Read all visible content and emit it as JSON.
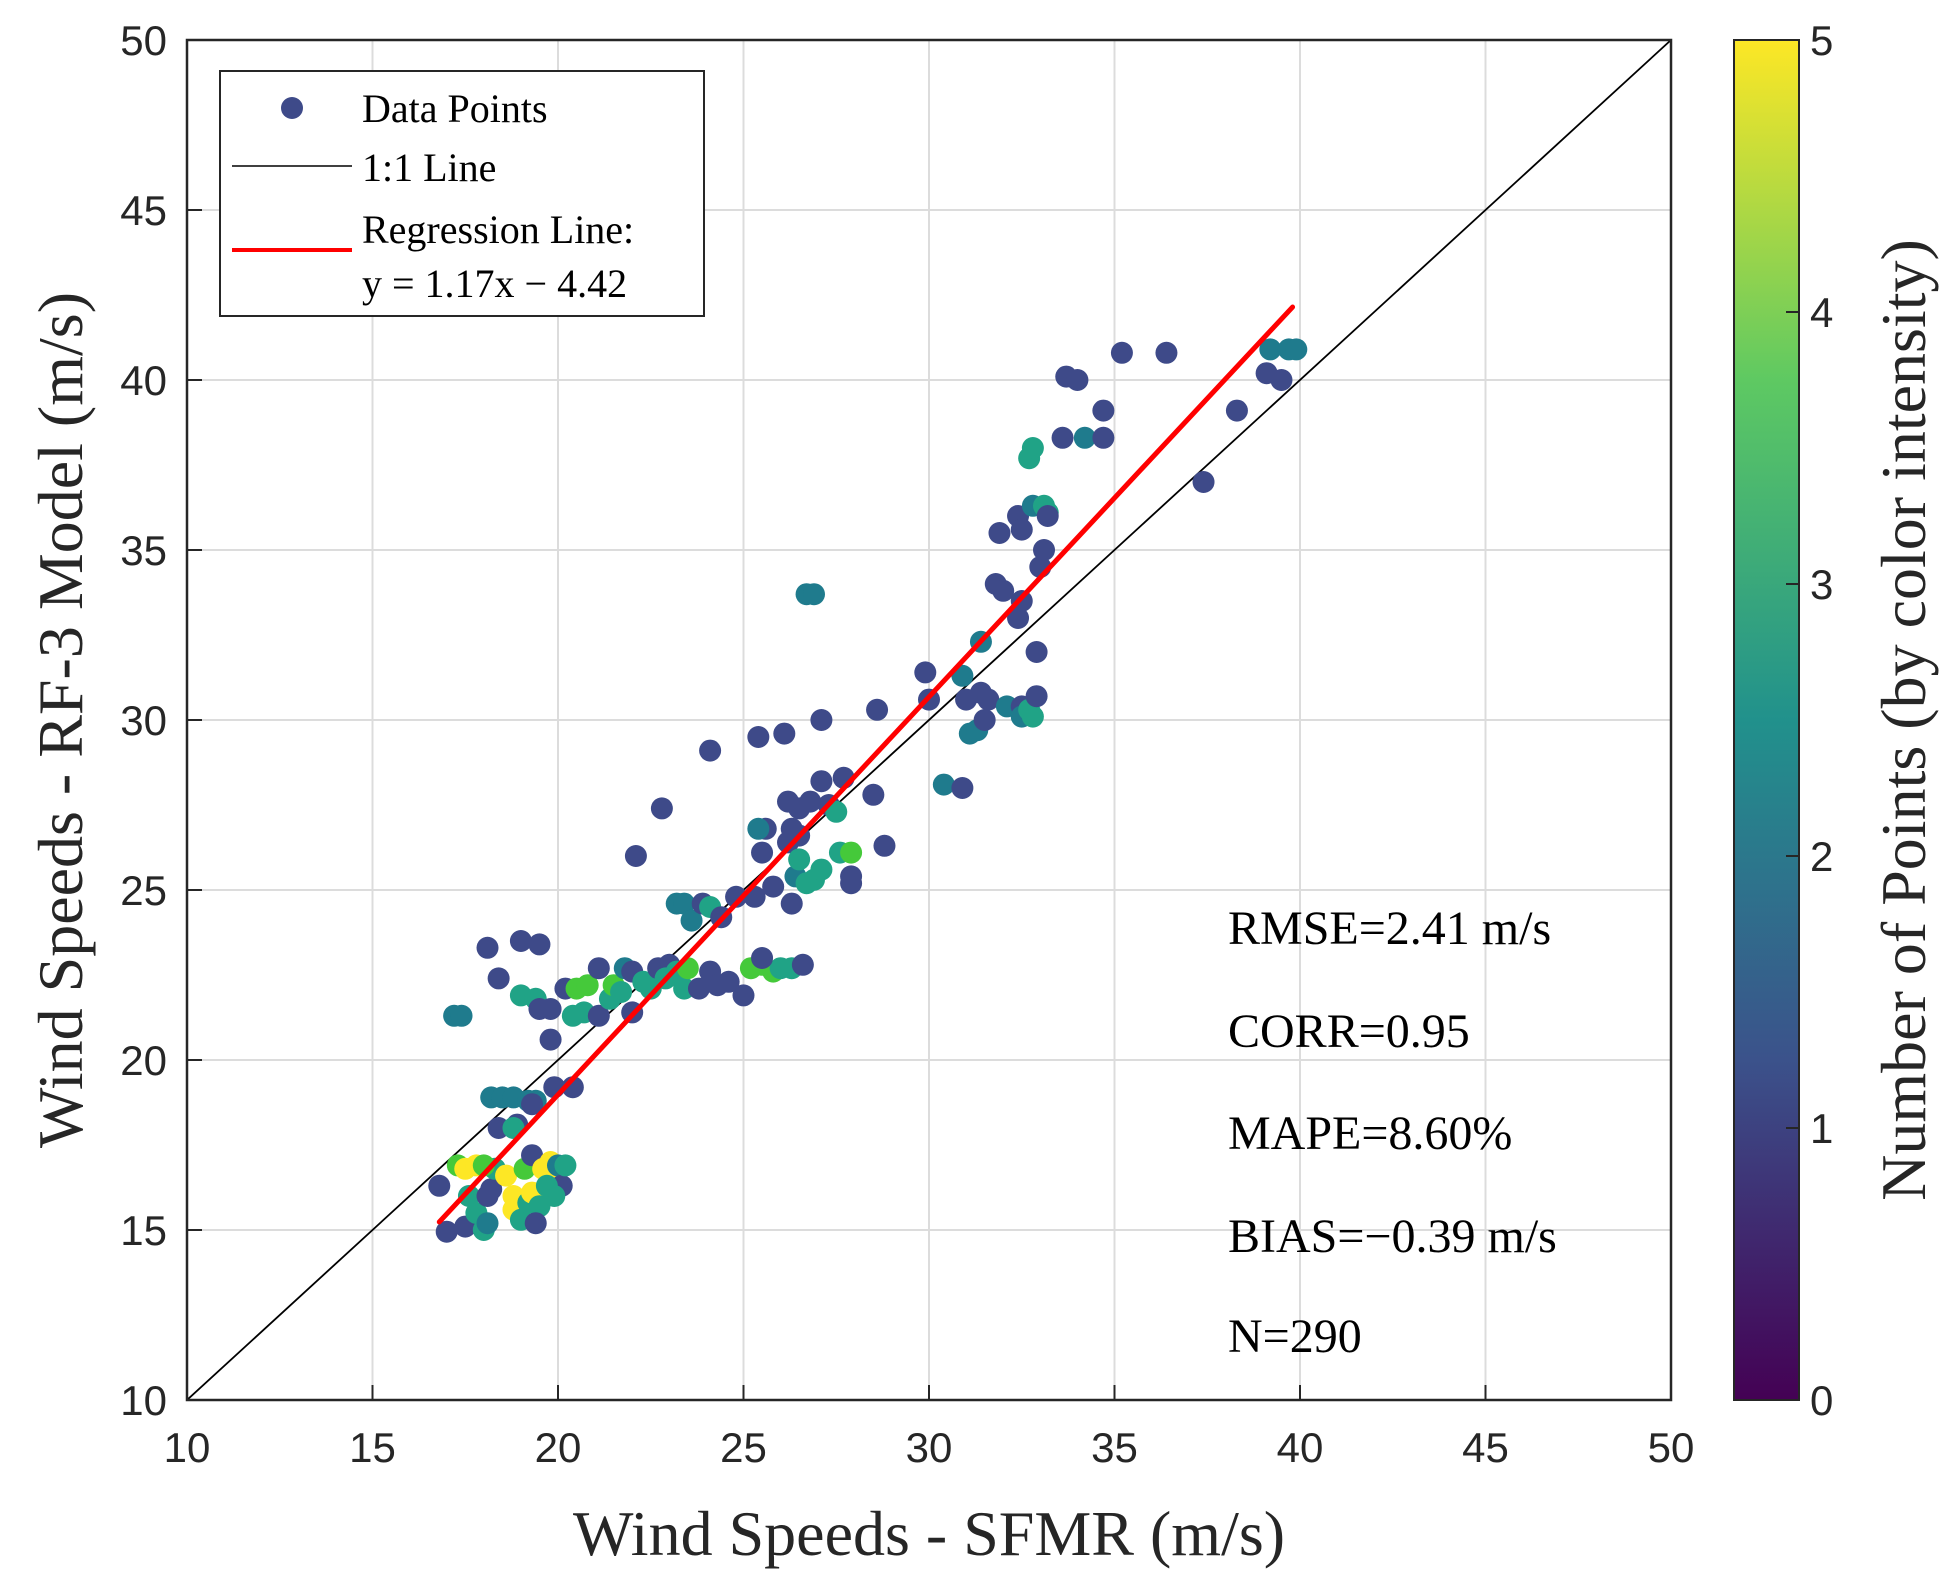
{
  "chart_data": {
    "type": "scatter",
    "xlabel": "Wind Speeds - SFMR (m/s)",
    "ylabel": "Wind Speeds - RF-3 Model (m/s)",
    "xlim": [
      10,
      50
    ],
    "ylim": [
      10,
      50
    ],
    "xticks": [
      10,
      15,
      20,
      25,
      30,
      35,
      40,
      45,
      50
    ],
    "yticks": [
      10,
      15,
      20,
      25,
      30,
      35,
      40,
      45,
      50
    ],
    "grid": true,
    "legend": {
      "placement": "top-left",
      "entries": [
        "Data Points",
        "1:1 Line",
        "Regression Line:",
        "y = 1.17x − 4.42"
      ]
    },
    "regression": {
      "slope": 1.17,
      "intercept": -4.42,
      "x_range": [
        16.8,
        39.8
      ],
      "color": "#ff0000"
    },
    "identity_line": {
      "color": "#000000"
    },
    "stats": [
      "RMSE=2.41 m/s",
      "CORR=0.95",
      "MAPE=8.60%",
      "BIAS=−0.39 m/s",
      "N=290"
    ],
    "colorbar": {
      "label": "Number of Points (by color intensity)",
      "range": [
        0,
        5
      ],
      "ticks": [
        0,
        1,
        2,
        3,
        4,
        5
      ],
      "colormap": [
        "#440154",
        "#3b528b",
        "#21918c",
        "#5ec962",
        "#fde725"
      ]
    },
    "point_colors": {
      "1": "#3e4a89",
      "2": "#1f7b8d",
      "3": "#20a386",
      "4": "#45c93a",
      "5": "#fde725"
    },
    "points": [
      [
        16.8,
        16.3,
        1
      ],
      [
        17.0,
        14.95,
        1
      ],
      [
        17.5,
        15.1,
        1
      ],
      [
        17.3,
        16.9,
        4
      ],
      [
        17.5,
        16.8,
        5
      ],
      [
        17.8,
        16.9,
        5
      ],
      [
        17.6,
        16.0,
        3
      ],
      [
        17.8,
        15.5,
        3
      ],
      [
        18.0,
        15.0,
        3
      ],
      [
        18.1,
        15.2,
        2
      ],
      [
        18.1,
        16.0,
        1
      ],
      [
        18.2,
        16.2,
        1
      ],
      [
        18.3,
        16.8,
        3
      ],
      [
        18.6,
        16.6,
        5
      ],
      [
        18.8,
        16.0,
        5
      ],
      [
        18.8,
        15.6,
        5
      ],
      [
        19.0,
        15.3,
        3
      ],
      [
        19.2,
        15.8,
        3
      ],
      [
        19.3,
        16.1,
        5
      ],
      [
        19.5,
        15.7,
        3
      ],
      [
        19.4,
        15.2,
        1
      ],
      [
        19.1,
        16.8,
        4
      ],
      [
        19.3,
        17.2,
        1
      ],
      [
        19.6,
        16.8,
        5
      ],
      [
        19.8,
        16.6,
        5
      ],
      [
        19.8,
        17.0,
        5
      ],
      [
        20.0,
        16.9,
        2
      ],
      [
        20.1,
        16.3,
        1
      ],
      [
        19.9,
        16.0,
        3
      ],
      [
        19.7,
        16.3,
        3
      ],
      [
        20.2,
        16.9,
        3
      ],
      [
        18.0,
        16.9,
        4
      ],
      [
        18.2,
        18.9,
        2
      ],
      [
        18.5,
        18.9,
        2
      ],
      [
        18.8,
        18.9,
        2
      ],
      [
        19.2,
        18.8,
        2
      ],
      [
        19.4,
        18.8,
        2
      ],
      [
        18.4,
        18.0,
        1
      ],
      [
        18.9,
        18.1,
        1
      ],
      [
        18.8,
        18.0,
        3
      ],
      [
        19.3,
        18.7,
        1
      ],
      [
        19.9,
        19.2,
        1
      ],
      [
        20.4,
        19.2,
        1
      ],
      [
        17.2,
        21.3,
        2
      ],
      [
        17.4,
        21.3,
        2
      ],
      [
        18.1,
        23.3,
        1
      ],
      [
        18.4,
        22.4,
        1
      ],
      [
        19.0,
        23.5,
        1
      ],
      [
        19.5,
        23.4,
        1
      ],
      [
        19.0,
        21.9,
        3
      ],
      [
        19.4,
        21.8,
        3
      ],
      [
        19.5,
        21.5,
        1
      ],
      [
        19.8,
        21.5,
        1
      ],
      [
        19.8,
        20.6,
        1
      ],
      [
        20.2,
        22.1,
        1
      ],
      [
        20.4,
        21.3,
        3
      ],
      [
        20.7,
        21.4,
        3
      ],
      [
        20.5,
        22.1,
        4
      ],
      [
        20.8,
        22.2,
        4
      ],
      [
        21.1,
        22.7,
        1
      ],
      [
        21.1,
        21.3,
        1
      ],
      [
        21.4,
        21.8,
        3
      ],
      [
        21.5,
        22.2,
        4
      ],
      [
        21.7,
        22.0,
        3
      ],
      [
        21.8,
        22.7,
        2
      ],
      [
        22.0,
        22.6,
        1
      ],
      [
        22.0,
        21.4,
        1
      ],
      [
        22.3,
        22.3,
        3
      ],
      [
        22.5,
        22.1,
        3
      ],
      [
        22.7,
        22.7,
        1
      ],
      [
        23.0,
        22.8,
        1
      ],
      [
        22.9,
        22.4,
        3
      ],
      [
        23.2,
        22.6,
        3
      ],
      [
        23.4,
        22.1,
        3
      ],
      [
        23.5,
        22.7,
        4
      ],
      [
        23.8,
        22.1,
        1
      ],
      [
        24.1,
        22.6,
        1
      ],
      [
        24.3,
        22.2,
        1
      ],
      [
        24.6,
        22.3,
        1
      ],
      [
        25.0,
        21.9,
        1
      ],
      [
        23.2,
        24.6,
        2
      ],
      [
        23.4,
        24.6,
        2
      ],
      [
        23.6,
        24.1,
        2
      ],
      [
        23.9,
        24.6,
        1
      ],
      [
        24.1,
        24.5,
        3
      ],
      [
        24.4,
        24.2,
        1
      ],
      [
        24.8,
        24.8,
        1
      ],
      [
        25.3,
        24.8,
        1
      ],
      [
        25.2,
        22.7,
        4
      ],
      [
        25.5,
        22.8,
        4
      ],
      [
        25.8,
        22.6,
        4
      ],
      [
        26.0,
        22.7,
        3
      ],
      [
        26.3,
        22.7,
        3
      ],
      [
        26.6,
        22.8,
        1
      ],
      [
        25.5,
        23.0,
        1
      ],
      [
        22.1,
        26.0,
        1
      ],
      [
        22.8,
        27.4,
        1
      ],
      [
        24.1,
        29.1,
        1
      ],
      [
        25.4,
        29.5,
        1
      ],
      [
        26.1,
        29.6,
        1
      ],
      [
        27.1,
        30.0,
        1
      ],
      [
        25.6,
        26.8,
        1
      ],
      [
        25.4,
        26.8,
        2
      ],
      [
        25.5,
        26.1,
        1
      ],
      [
        25.8,
        25.1,
        1
      ],
      [
        26.2,
        26.4,
        1
      ],
      [
        26.3,
        24.6,
        1
      ],
      [
        26.4,
        25.4,
        2
      ],
      [
        26.5,
        25.9,
        3
      ],
      [
        26.7,
        25.2,
        3
      ],
      [
        26.9,
        25.3,
        3
      ],
      [
        27.1,
        25.6,
        3
      ],
      [
        26.3,
        26.8,
        1
      ],
      [
        26.5,
        26.6,
        1
      ],
      [
        26.2,
        27.6,
        1
      ],
      [
        26.5,
        27.4,
        1
      ],
      [
        26.8,
        27.6,
        1
      ],
      [
        27.1,
        28.2,
        1
      ],
      [
        27.3,
        27.5,
        1
      ],
      [
        27.5,
        27.3,
        3
      ],
      [
        27.7,
        28.3,
        1
      ],
      [
        27.6,
        26.1,
        3
      ],
      [
        27.9,
        26.1,
        4
      ],
      [
        27.9,
        25.4,
        1
      ],
      [
        27.9,
        25.2,
        1
      ],
      [
        28.5,
        27.8,
        1
      ],
      [
        28.6,
        30.3,
        1
      ],
      [
        28.8,
        26.3,
        1
      ],
      [
        26.7,
        33.7,
        2
      ],
      [
        26.9,
        33.7,
        2
      ],
      [
        29.9,
        31.4,
        1
      ],
      [
        30.0,
        30.6,
        1
      ],
      [
        30.4,
        28.1,
        2
      ],
      [
        30.9,
        28.0,
        1
      ],
      [
        30.9,
        31.3,
        2
      ],
      [
        31.0,
        30.6,
        1
      ],
      [
        31.1,
        29.6,
        2
      ],
      [
        31.3,
        29.7,
        2
      ],
      [
        31.4,
        32.3,
        2
      ],
      [
        31.4,
        30.8,
        1
      ],
      [
        31.5,
        30.0,
        1
      ],
      [
        31.6,
        30.6,
        1
      ],
      [
        31.8,
        34.0,
        1
      ],
      [
        31.9,
        35.5,
        1
      ],
      [
        32.0,
        33.8,
        1
      ],
      [
        32.1,
        30.4,
        2
      ],
      [
        32.4,
        33.0,
        1
      ],
      [
        32.4,
        36.0,
        1
      ],
      [
        32.5,
        35.6,
        1
      ],
      [
        32.5,
        33.5,
        1
      ],
      [
        32.5,
        30.4,
        1
      ],
      [
        32.5,
        30.1,
        2
      ],
      [
        32.7,
        30.3,
        3
      ],
      [
        32.8,
        30.1,
        3
      ],
      [
        32.7,
        37.7,
        3
      ],
      [
        32.8,
        38.0,
        3
      ],
      [
        32.8,
        36.3,
        2
      ],
      [
        32.9,
        32.0,
        1
      ],
      [
        32.9,
        30.7,
        1
      ],
      [
        33.0,
        34.5,
        1
      ],
      [
        33.1,
        35.0,
        1
      ],
      [
        33.1,
        36.3,
        3
      ],
      [
        33.2,
        36.1,
        3
      ],
      [
        33.2,
        36.0,
        1
      ],
      [
        33.6,
        38.3,
        1
      ],
      [
        33.7,
        40.1,
        1
      ],
      [
        34.0,
        40.0,
        1
      ],
      [
        34.2,
        38.3,
        2
      ],
      [
        34.7,
        38.3,
        1
      ],
      [
        34.7,
        39.1,
        1
      ],
      [
        35.2,
        40.8,
        1
      ],
      [
        36.4,
        40.8,
        1
      ],
      [
        37.4,
        37.0,
        1
      ],
      [
        38.3,
        39.1,
        1
      ],
      [
        39.1,
        40.2,
        1
      ],
      [
        39.2,
        40.9,
        2
      ],
      [
        39.5,
        40.0,
        1
      ],
      [
        39.7,
        40.9,
        2
      ],
      [
        39.9,
        40.9,
        2
      ]
    ]
  }
}
